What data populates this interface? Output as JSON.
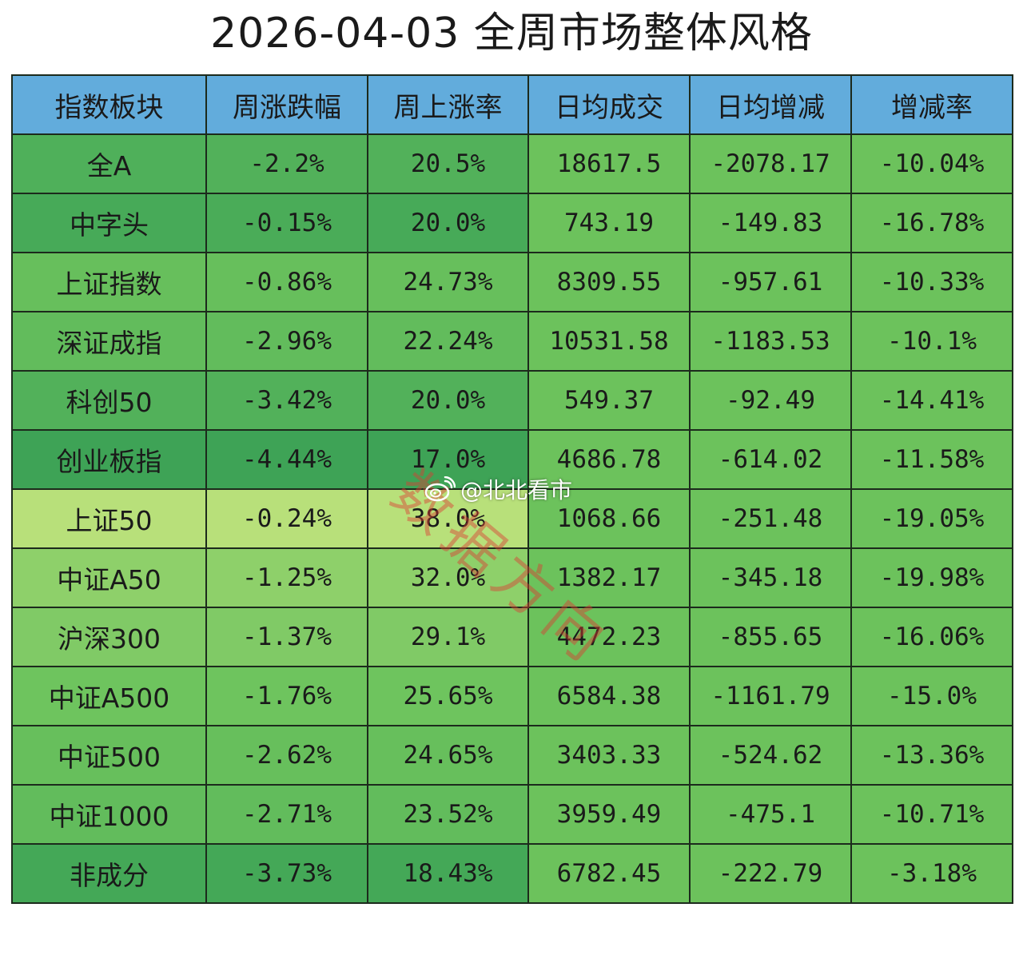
{
  "title": "2026-04-03  全周市场整体风格",
  "table": {
    "headers": [
      "指数板块",
      "周涨跌幅",
      "周上涨率",
      "日均成交",
      "日均增减",
      "增减率"
    ],
    "rows": [
      {
        "cells": [
          "全A",
          "-2.2%",
          "20.5%",
          "18617.5",
          "-2078.17",
          "-10.04%"
        ],
        "colors": [
          "#4fb05a",
          "#52b15a",
          "#52b15a",
          "#6cc25c",
          "#6cc25c",
          "#6cc25c"
        ]
      },
      {
        "cells": [
          "中字头",
          "-0.15%",
          "20.0%",
          "743.19",
          "-149.83",
          "-16.78%"
        ],
        "colors": [
          "#47aa58",
          "#4aac58",
          "#47aa58",
          "#6cc25c",
          "#6cc25c",
          "#6cc25c"
        ]
      },
      {
        "cells": [
          "上证指数",
          "-0.86%",
          "24.73%",
          "8309.55",
          "-957.61",
          "-10.33%"
        ],
        "colors": [
          "#67bf5c",
          "#67bf5c",
          "#67bf5c",
          "#6cc25c",
          "#6cc25c",
          "#6cc25c"
        ]
      },
      {
        "cells": [
          "深证成指",
          "-2.96%",
          "22.24%",
          "10531.58",
          "-1183.53",
          "-10.1%"
        ],
        "colors": [
          "#62bc5c",
          "#62bc5c",
          "#62bc5c",
          "#6cc25c",
          "#6cc25c",
          "#6cc25c"
        ]
      },
      {
        "cells": [
          "科创50",
          "-3.42%",
          "20.0%",
          "549.37",
          "-92.49",
          "-14.41%"
        ],
        "colors": [
          "#52b15a",
          "#52b15a",
          "#52b15a",
          "#6cc25c",
          "#6cc25c",
          "#6cc25c"
        ]
      },
      {
        "cells": [
          "创业板指",
          "-4.44%",
          "17.0%",
          "4686.78",
          "-614.02",
          "-11.58%"
        ],
        "colors": [
          "#3ea356",
          "#3ea356",
          "#3ea356",
          "#6cc25c",
          "#6cc25c",
          "#6cc25c"
        ]
      },
      {
        "cells": [
          "上证50",
          "-0.24%",
          "38.0%",
          "1068.66",
          "-251.48",
          "-19.05%"
        ],
        "colors": [
          "#b8e07a",
          "#b8e07a",
          "#b8e07a",
          "#6cc25c",
          "#6cc25c",
          "#6cc25c"
        ]
      },
      {
        "cells": [
          "中证A50",
          "-1.25%",
          "32.0%",
          "1382.17",
          "-345.18",
          "-19.98%"
        ],
        "colors": [
          "#8ed06a",
          "#8ed06a",
          "#8ed06a",
          "#6cc25c",
          "#6cc25c",
          "#6cc25c"
        ]
      },
      {
        "cells": [
          "沪深300",
          "-1.37%",
          "29.1%",
          "4472.23",
          "-855.65",
          "-16.06%"
        ],
        "colors": [
          "#80ca66",
          "#80ca66",
          "#80ca66",
          "#6cc25c",
          "#6cc25c",
          "#6cc25c"
        ]
      },
      {
        "cells": [
          "中证A500",
          "-1.76%",
          "25.65%",
          "6584.38",
          "-1161.79",
          "-15.0%"
        ],
        "colors": [
          "#6ec45e",
          "#6ec45e",
          "#6ec45e",
          "#6cc25c",
          "#6cc25c",
          "#6cc25c"
        ]
      },
      {
        "cells": [
          "中证500",
          "-2.62%",
          "24.65%",
          "3403.33",
          "-524.62",
          "-13.36%"
        ],
        "colors": [
          "#67bf5c",
          "#67bf5c",
          "#67bf5c",
          "#6cc25c",
          "#6cc25c",
          "#6cc25c"
        ]
      },
      {
        "cells": [
          "中证1000",
          "-2.71%",
          "23.52%",
          "3959.49",
          "-475.1",
          "-10.71%"
        ],
        "colors": [
          "#62bc5c",
          "#62bc5c",
          "#62bc5c",
          "#6cc25c",
          "#6cc25c",
          "#6cc25c"
        ]
      },
      {
        "cells": [
          "非成分",
          "-3.73%",
          "18.43%",
          "6782.45",
          "-222.79",
          "-3.18%"
        ],
        "colors": [
          "#44a857",
          "#44a857",
          "#44a857",
          "#6cc25c",
          "#6cc25c",
          "#6cc25c"
        ]
      }
    ]
  },
  "watermark": "数据方向",
  "weibo_handle": "@北北看市",
  "icons": {
    "weibo": "weibo-icon"
  },
  "colors": {
    "header_bg": "#62acdc",
    "border": "#1c2a1c"
  }
}
